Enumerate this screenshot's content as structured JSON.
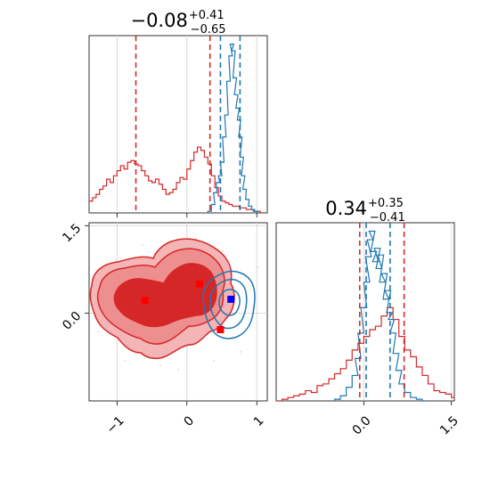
{
  "chart_data": {
    "type": "corner",
    "colors": {
      "red": "#d62728",
      "blue": "#1f77b4",
      "red_fill": "#ef9a9a"
    },
    "panels": [
      {
        "id": "hist-x",
        "type": "histogram",
        "title": {
          "value": "−0.08",
          "sup": "+0.41",
          "sub": "−0.65"
        },
        "xlim": [
          -1.4,
          1.15
        ],
        "grid": true,
        "red_quantiles": [
          -0.73,
          0.33
        ],
        "blue_quantiles": [
          0.48,
          0.76
        ],
        "red_hist": [
          [
            -1.4,
            0.07
          ],
          [
            -1.35,
            0.09
          ],
          [
            -1.3,
            0.11
          ],
          [
            -1.25,
            0.14
          ],
          [
            -1.2,
            0.16
          ],
          [
            -1.15,
            0.2
          ],
          [
            -1.1,
            0.18
          ],
          [
            -1.05,
            0.22
          ],
          [
            -1.0,
            0.25
          ],
          [
            -0.95,
            0.28
          ],
          [
            -0.9,
            0.26
          ],
          [
            -0.85,
            0.3
          ],
          [
            -0.8,
            0.31
          ],
          [
            -0.75,
            0.29
          ],
          [
            -0.7,
            0.28
          ],
          [
            -0.65,
            0.25
          ],
          [
            -0.6,
            0.22
          ],
          [
            -0.55,
            0.19
          ],
          [
            -0.5,
            0.18
          ],
          [
            -0.45,
            0.2
          ],
          [
            -0.4,
            0.17
          ],
          [
            -0.35,
            0.14
          ],
          [
            -0.3,
            0.11
          ],
          [
            -0.25,
            0.12
          ],
          [
            -0.2,
            0.14
          ],
          [
            -0.15,
            0.18
          ],
          [
            -0.1,
            0.21
          ],
          [
            -0.05,
            0.2
          ],
          [
            0.0,
            0.26
          ],
          [
            0.05,
            0.31
          ],
          [
            0.1,
            0.36
          ],
          [
            0.15,
            0.39
          ],
          [
            0.2,
            0.37
          ],
          [
            0.25,
            0.33
          ],
          [
            0.3,
            0.29
          ],
          [
            0.35,
            0.22
          ],
          [
            0.4,
            0.15
          ],
          [
            0.45,
            0.1
          ],
          [
            0.5,
            0.07
          ],
          [
            0.55,
            0.06
          ],
          [
            0.6,
            0.05
          ],
          [
            0.65,
            0.04
          ],
          [
            0.7,
            0.04
          ],
          [
            0.75,
            0.03
          ],
          [
            0.8,
            0.03
          ],
          [
            0.85,
            0.02
          ],
          [
            0.9,
            0.02
          ],
          [
            0.95,
            0.01
          ],
          [
            1.0,
            0.01
          ],
          [
            1.05,
            0.0
          ]
        ],
        "blue_hist": [
          [
            0.3,
            0.01
          ],
          [
            0.35,
            0.05
          ],
          [
            0.38,
            0.12
          ],
          [
            0.42,
            0.18
          ],
          [
            0.45,
            0.22
          ],
          [
            0.48,
            0.3
          ],
          [
            0.51,
            0.45
          ],
          [
            0.54,
            0.58
          ],
          [
            0.57,
            0.78
          ],
          [
            0.6,
            0.93
          ],
          [
            0.62,
            1.0
          ],
          [
            0.64,
            0.96
          ],
          [
            0.66,
            0.8
          ],
          [
            0.68,
            0.7
          ],
          [
            0.7,
            0.62
          ],
          [
            0.72,
            0.55
          ],
          [
            0.74,
            0.45
          ],
          [
            0.76,
            0.33
          ],
          [
            0.78,
            0.22
          ],
          [
            0.8,
            0.14
          ],
          [
            0.84,
            0.08
          ],
          [
            0.88,
            0.04
          ],
          [
            0.92,
            0.02
          ],
          [
            0.96,
            0.01
          ],
          [
            1.0,
            0.0
          ]
        ]
      },
      {
        "id": "scatter-xy",
        "type": "contour",
        "xlim": [
          -1.4,
          1.15
        ],
        "ylim": [
          -1.5,
          1.55
        ],
        "xticks": [
          -1,
          0,
          1
        ],
        "yticks": [
          0.0,
          1.5
        ],
        "grid": true,
        "red_markers": [
          [
            -0.6,
            0.22
          ],
          [
            0.18,
            0.5
          ],
          [
            0.48,
            -0.28
          ]
        ],
        "blue_markers": [
          [
            0.63,
            0.24
          ]
        ]
      },
      {
        "id": "hist-y",
        "type": "histogram",
        "title": {
          "value": "0.34",
          "sup": "+0.35",
          "sub": "−0.41"
        },
        "xlim": [
          -1.5,
          1.55
        ],
        "xticks": [
          0.0,
          1.5
        ],
        "grid": true,
        "red_quantiles": [
          -0.07,
          0.69
        ],
        "blue_quantiles": [
          0.04,
          0.45
        ],
        "red_hist": [
          [
            -1.5,
            0.0
          ],
          [
            -1.4,
            0.01
          ],
          [
            -1.3,
            0.02
          ],
          [
            -1.2,
            0.03
          ],
          [
            -1.1,
            0.04
          ],
          [
            -1.0,
            0.06
          ],
          [
            -0.9,
            0.05
          ],
          [
            -0.8,
            0.09
          ],
          [
            -0.7,
            0.1
          ],
          [
            -0.6,
            0.13
          ],
          [
            -0.5,
            0.16
          ],
          [
            -0.4,
            0.19
          ],
          [
            -0.3,
            0.24
          ],
          [
            -0.2,
            0.3
          ],
          [
            -0.1,
            0.34
          ],
          [
            0.0,
            0.38
          ],
          [
            0.1,
            0.42
          ],
          [
            0.2,
            0.44
          ],
          [
            0.3,
            0.5
          ],
          [
            0.4,
            0.55
          ],
          [
            0.5,
            0.48
          ],
          [
            0.6,
            0.38
          ],
          [
            0.7,
            0.3
          ],
          [
            0.8,
            0.26
          ],
          [
            0.9,
            0.2
          ],
          [
            1.0,
            0.15
          ],
          [
            1.1,
            0.1
          ],
          [
            1.2,
            0.06
          ],
          [
            1.3,
            0.05
          ],
          [
            1.4,
            0.04
          ],
          [
            1.5,
            0.02
          ]
        ],
        "blue_hist": [
          [
            -0.5,
            0.01
          ],
          [
            -0.4,
            0.03
          ],
          [
            -0.3,
            0.08
          ],
          [
            -0.2,
            0.15
          ],
          [
            -0.15,
            0.25
          ],
          [
            -0.1,
            0.4
          ],
          [
            -0.05,
            0.55
          ],
          [
            0.0,
            0.7
          ],
          [
            0.03,
            0.85
          ],
          [
            0.06,
            0.95
          ],
          [
            0.09,
            1.0
          ],
          [
            0.12,
            0.88
          ],
          [
            0.15,
            0.82
          ],
          [
            0.18,
            0.9
          ],
          [
            0.21,
            0.78
          ],
          [
            0.24,
            0.86
          ],
          [
            0.27,
            0.7
          ],
          [
            0.3,
            0.75
          ],
          [
            0.33,
            0.6
          ],
          [
            0.36,
            0.65
          ],
          [
            0.39,
            0.52
          ],
          [
            0.42,
            0.48
          ],
          [
            0.45,
            0.4
          ],
          [
            0.5,
            0.28
          ],
          [
            0.55,
            0.18
          ],
          [
            0.6,
            0.1
          ],
          [
            0.7,
            0.05
          ],
          [
            0.8,
            0.02
          ],
          [
            0.9,
            0.01
          ],
          [
            1.0,
            0.0
          ]
        ]
      }
    ]
  }
}
